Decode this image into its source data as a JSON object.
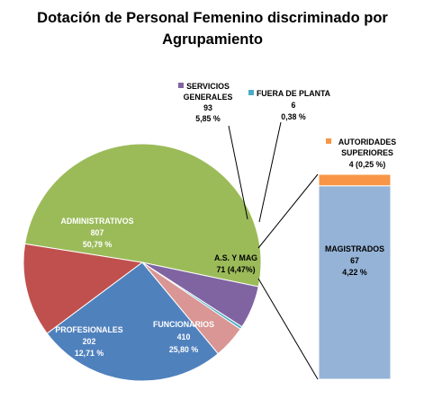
{
  "chart_data": {
    "type": "pie",
    "title": "Dotación de Personal Femenino discriminado por Agrupamiento",
    "slices": [
      {
        "name": "ADMINISTRATIVOS",
        "value": 807,
        "pct": "50,79 %",
        "color": "#9BBB59"
      },
      {
        "name": "SERVICIOS GENERALES",
        "value": 93,
        "pct": "5,85 %",
        "color": "#8064A2"
      },
      {
        "name": "FUERA DE PLANTA",
        "value": 6,
        "pct": "0,38 %",
        "color": "#4BACC6"
      },
      {
        "name": "A.S. Y MAG",
        "value": 71,
        "pct": "(4,47%)",
        "color": "#D99694"
      },
      {
        "name": "FUNCIONARIOS",
        "value": 410,
        "pct": "25,80 %",
        "color": "#4F81BD"
      },
      {
        "name": "PROFESIONALES",
        "value": 202,
        "pct": "12,71 %",
        "color": "#C0504D"
      }
    ],
    "breakdown": {
      "of": "A.S. Y MAG",
      "type": "stacked-bar",
      "segments": [
        {
          "name": "AUTORIDADES SUPERIORES",
          "value": 4,
          "pct": "0,25 %",
          "color": "#F79646"
        },
        {
          "name": "MAGISTRADOS",
          "value": 67,
          "pct": "4,22 %",
          "color": "#95B3D7"
        }
      ]
    },
    "labels": {
      "title_line1": "Dotación de Personal Femenino discriminado por",
      "title_line2": "Agrupamiento",
      "servicios_line1": "SERVICIOS",
      "servicios_line2": "GENERALES",
      "servicios_value": "93",
      "servicios_pct": "5,85 %",
      "fuera_name": "FUERA DE PLANTA",
      "fuera_value": "6",
      "fuera_pct": "0,38 %",
      "autoridades_line1": "AUTORIDADES",
      "autoridades_line2": "SUPERIORES",
      "autoridades_value": "4 (0,25 %)",
      "admin_name": "ADMINISTRATIVOS",
      "admin_value": "807",
      "admin_pct": "50,79 %",
      "asmag_name": "A.S. Y MAG",
      "asmag_value": "71  (4,47%)",
      "profesionales_name": "PROFESIONALES",
      "profesionales_value": "202",
      "profesionales_pct": "12,71 %",
      "funcionarios_name": "FUNCIONARIOS",
      "funcionarios_value": "410",
      "funcionarios_pct": "25,80 %",
      "magistrados_name": "MAGISTRADOS",
      "magistrados_value": "67",
      "magistrados_pct": "4,22 %"
    }
  }
}
